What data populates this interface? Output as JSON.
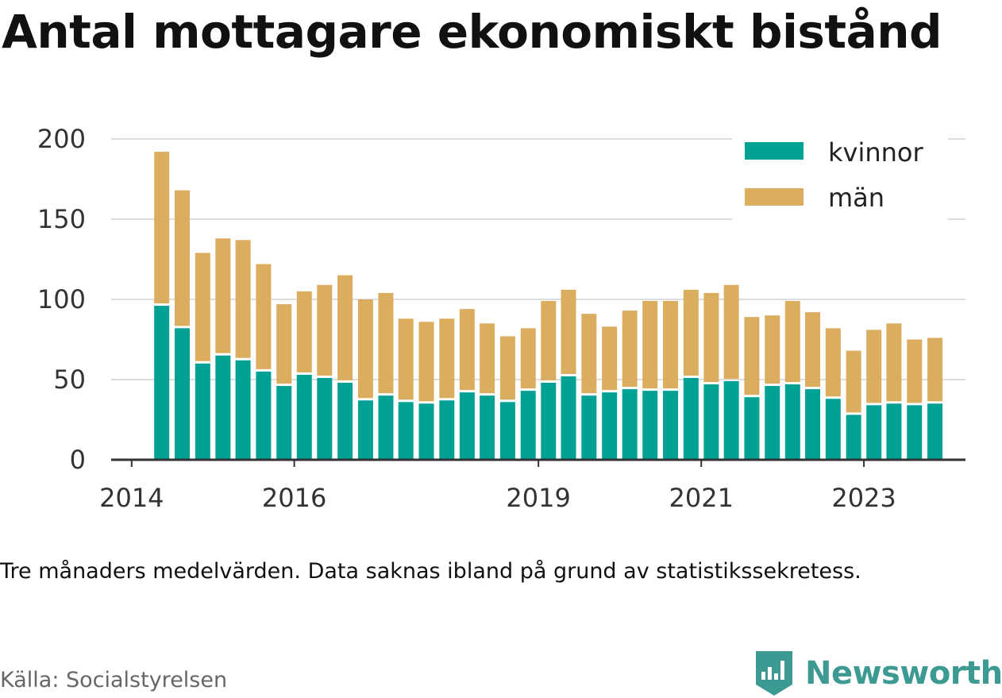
{
  "title": "Antal mottagare ekonomiskt bistånd",
  "note": "Tre månaders medelvärden. Data saknas ibland på grund av statistikssekretess.",
  "source": "Källa: Socialstyrelsen",
  "brand": {
    "name": "Newsworthy",
    "icon": "newsworthy-logo-icon"
  },
  "colors": {
    "kvinnor": "#00a195",
    "man": "#dbad5f",
    "grid": "#dddddd",
    "axis": "#333333"
  },
  "chart_data": {
    "type": "bar",
    "stacked": true,
    "ylim": [
      0,
      200
    ],
    "yticks": [
      0,
      50,
      100,
      150,
      200
    ],
    "x_domain": [
      "2013-10-01",
      "2024-04-01"
    ],
    "xticks": [
      {
        "date": "2014-01-01",
        "label": "2014"
      },
      {
        "date": "2016-01-01",
        "label": "2016"
      },
      {
        "date": "2019-01-01",
        "label": "2019"
      },
      {
        "date": "2021-01-01",
        "label": "2021"
      },
      {
        "date": "2023-01-01",
        "label": "2023"
      }
    ],
    "legend_position": "top-right",
    "categories": [
      "2014-05-16",
      "2014-08-16",
      "2014-11-16",
      "2015-02-15",
      "2015-05-16",
      "2015-08-16",
      "2015-11-16",
      "2016-02-15",
      "2016-05-16",
      "2016-08-16",
      "2016-11-16",
      "2017-02-15",
      "2017-05-16",
      "2017-08-16",
      "2017-11-16",
      "2018-02-15",
      "2018-05-16",
      "2018-08-16",
      "2018-11-16",
      "2019-02-15",
      "2019-05-16",
      "2019-08-16",
      "2019-11-16",
      "2020-02-15",
      "2020-05-16",
      "2020-08-16",
      "2020-11-16",
      "2021-02-15",
      "2021-05-16",
      "2021-08-16",
      "2021-11-16",
      "2022-02-15",
      "2022-05-16",
      "2022-08-16",
      "2022-11-16",
      "2023-02-15",
      "2023-05-16",
      "2023-08-16",
      "2023-11-16"
    ],
    "series": [
      {
        "name": "kvinnor",
        "values": [
          96,
          82,
          60,
          65,
          62,
          55,
          46,
          53,
          51,
          48,
          37,
          40,
          36,
          35,
          37,
          42,
          40,
          36,
          43,
          48,
          52,
          40,
          42,
          44,
          43,
          43,
          51,
          47,
          49,
          39,
          46,
          47,
          44,
          38,
          28,
          34,
          35,
          34,
          35
        ]
      },
      {
        "name": "män",
        "values": [
          96,
          86,
          69,
          73,
          75,
          67,
          51,
          52,
          58,
          67,
          63,
          64,
          52,
          51,
          51,
          52,
          45,
          41,
          39,
          51,
          54,
          51,
          41,
          49,
          56,
          56,
          55,
          57,
          60,
          50,
          44,
          52,
          48,
          44,
          40,
          47,
          50,
          41,
          41
        ]
      }
    ]
  }
}
